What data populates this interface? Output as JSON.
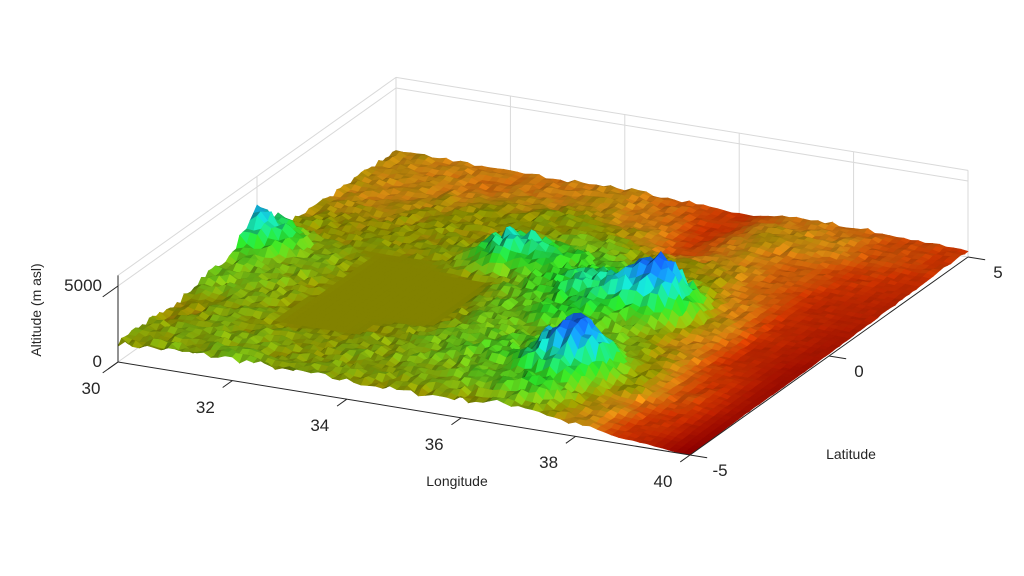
{
  "chart_data": {
    "type": "surface",
    "xlabel": "Longitude",
    "ylabel": "Latitude",
    "zlabel": "Altitude (m asl)",
    "xlim": [
      30,
      40
    ],
    "ylim": [
      -5,
      5
    ],
    "zlim": [
      0,
      5700
    ],
    "xticks": [
      "30",
      "32",
      "34",
      "36",
      "38",
      "40"
    ],
    "yticks": [
      "-5",
      "0",
      "5"
    ],
    "zticks": [
      "0",
      "5000"
    ],
    "grid": true,
    "colormap": "red (low) - yellow - green - cyan - blue (high)",
    "colors": {
      "low": "#8b0000",
      "mid": "#8a8a00",
      "high": "#101070",
      "axis": "#262626",
      "grid": "#d9d9d9"
    },
    "elevation_grid": {
      "lon": [
        30,
        31,
        32,
        33,
        34,
        35,
        36,
        37,
        38,
        39,
        40
      ],
      "lat": [
        -5,
        -4,
        -3,
        -2,
        -1,
        0,
        1,
        2,
        3,
        4,
        5
      ],
      "z": [
        [
          1200,
          1300,
          1400,
          1300,
          1200,
          1100,
          1200,
          1400,
          800,
          300,
          0
        ],
        [
          1200,
          1300,
          1300,
          1200,
          1300,
          1400,
          1600,
          2200,
          900,
          400,
          50
        ],
        [
          1000,
          1300,
          1134,
          1134,
          1300,
          1600,
          1800,
          4500,
          1200,
          500,
          100
        ],
        [
          1500,
          1300,
          1134,
          1134,
          1134,
          1500,
          1600,
          1700,
          1000,
          400,
          100
        ],
        [
          1600,
          1400,
          1134,
          1134,
          1134,
          1600,
          2200,
          1500,
          800,
          300,
          100
        ],
        [
          3500,
          1400,
          1134,
          1134,
          1134,
          1900,
          2800,
          4500,
          900,
          300,
          150
        ],
        [
          1200,
          1100,
          1100,
          1200,
          3000,
          2000,
          1800,
          1400,
          700,
          300,
          200
        ],
        [
          1000,
          1000,
          1100,
          1100,
          1300,
          1500,
          1100,
          1000,
          600,
          300,
          250
        ],
        [
          900,
          800,
          1000,
          1100,
          1200,
          1000,
          500,
          800,
          600,
          400,
          300
        ],
        [
          900,
          800,
          700,
          800,
          900,
          700,
          400,
          900,
          800,
          500,
          400
        ],
        [
          900,
          800,
          700,
          700,
          800,
          600,
          400,
          700,
          700,
          500,
          400
        ]
      ]
    }
  }
}
